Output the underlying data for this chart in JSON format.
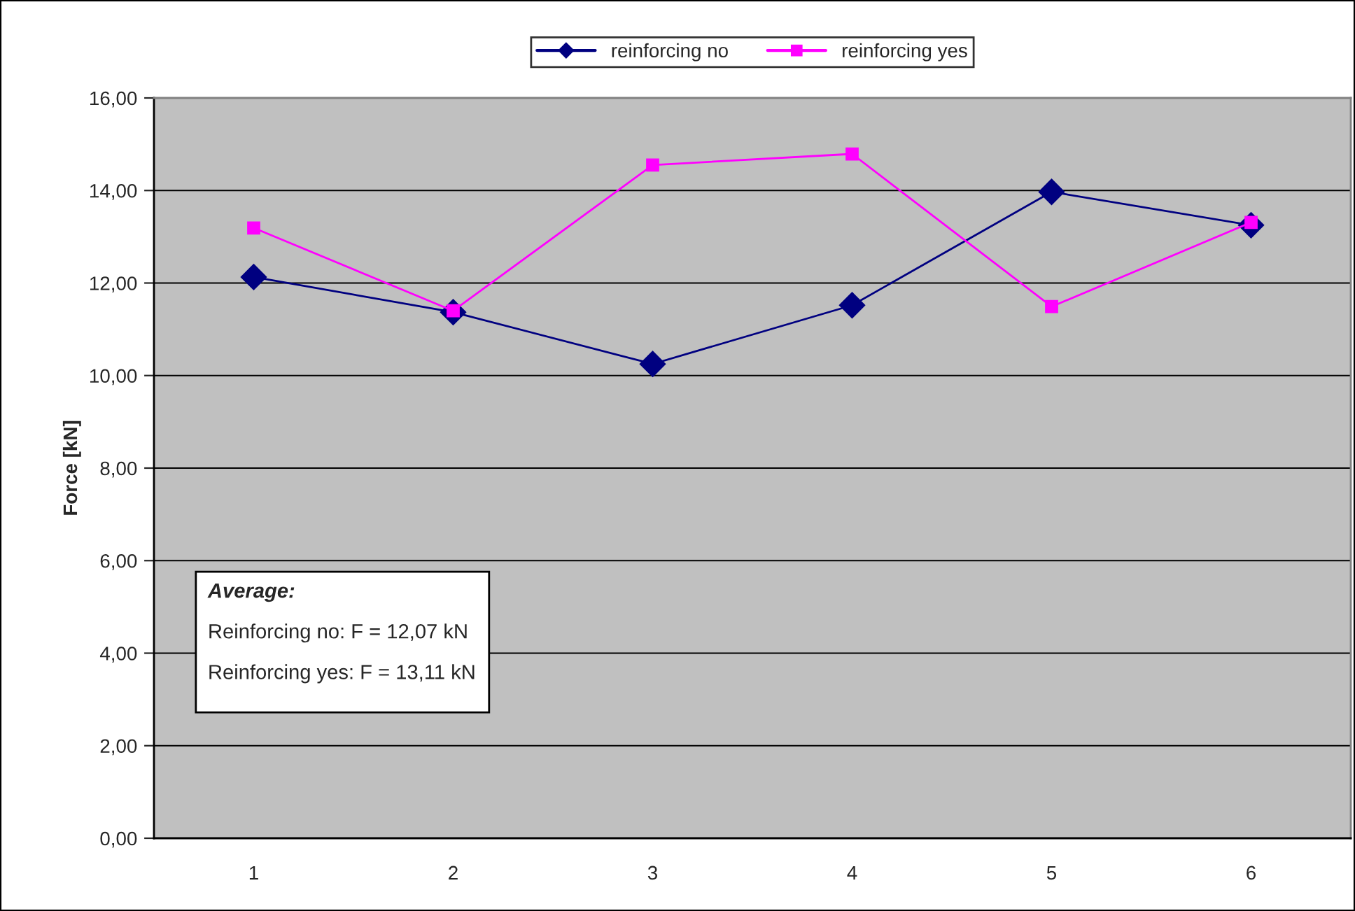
{
  "chart_data": {
    "type": "line",
    "ylabel": "Force [kN]",
    "categories": [
      "1",
      "2",
      "3",
      "4",
      "5",
      "6"
    ],
    "series": [
      {
        "name": "reinforcing no",
        "color": "#000080",
        "marker": "diamond",
        "values": [
          12.13,
          11.37,
          10.25,
          11.52,
          13.97,
          13.25
        ]
      },
      {
        "name": "reinforcing yes",
        "color": "#ff00ff",
        "marker": "square",
        "values": [
          13.19,
          11.4,
          14.55,
          14.79,
          11.49,
          13.31
        ]
      }
    ],
    "ylim": [
      0,
      16
    ],
    "yticks": [
      {
        "value": 0,
        "label": "0,00"
      },
      {
        "value": 2,
        "label": "2,00"
      },
      {
        "value": 4,
        "label": "4,00"
      },
      {
        "value": 6,
        "label": "6,00"
      },
      {
        "value": 8,
        "label": "8,00"
      },
      {
        "value": 10,
        "label": "10,00"
      },
      {
        "value": 12,
        "label": "12,00"
      },
      {
        "value": 14,
        "label": "14,00"
      },
      {
        "value": 16,
        "label": "16,00"
      }
    ],
    "grid": "y",
    "legend": "top",
    "annotations": [
      "Average:",
      "Reinforcing no: F = 12,07 kN",
      "Reinforcing yes: F = 13,11 kN"
    ]
  }
}
